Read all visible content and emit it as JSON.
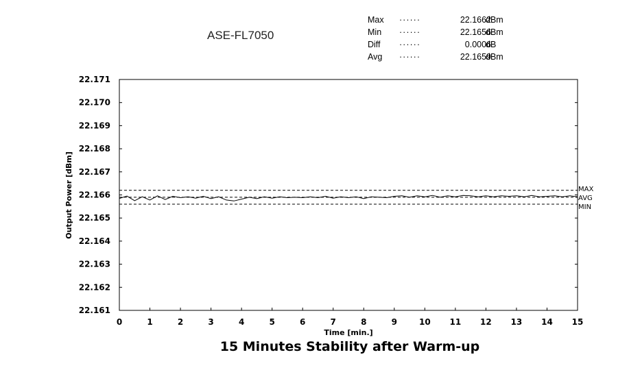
{
  "stats": [
    {
      "name": "Max",
      "dots": "······",
      "value": "22.1662",
      "unit": "dBm"
    },
    {
      "name": "Min",
      "dots": "······",
      "value": "22.1656",
      "unit": "dBm"
    },
    {
      "name": "Diff",
      "dots": "······",
      "value": "0.0006",
      "unit": "dB"
    },
    {
      "name": "Avg",
      "dots": "······",
      "value": "22.1659",
      "unit": "dBm"
    }
  ],
  "model": "ASE-FL7050",
  "caption": "15 Minutes Stability after Warm-up",
  "chart_data": {
    "type": "line",
    "title": "",
    "xlabel": "Time [min.]",
    "ylabel": "Output Power [dBm]",
    "xlim": [
      0,
      15
    ],
    "ylim": [
      22.161,
      22.171
    ],
    "x_ticks": [
      "0",
      "1",
      "2",
      "3",
      "4",
      "5",
      "6",
      "7",
      "8",
      "9",
      "10",
      "11",
      "12",
      "13",
      "14",
      "15"
    ],
    "y_ticks": [
      "22.171",
      "22.170",
      "22.169",
      "22.168",
      "22.167",
      "22.166",
      "22.165",
      "22.164",
      "22.163",
      "22.162",
      "22.161"
    ],
    "grid": false,
    "reference_lines": [
      {
        "label": "MAX",
        "y": 22.1662
      },
      {
        "label": "AVG",
        "y": 22.1659
      },
      {
        "label": "MIN",
        "y": 22.1656
      }
    ],
    "series": [
      {
        "x": [
          0,
          0.25,
          0.5,
          0.75,
          1,
          1.25,
          1.5,
          1.75,
          2,
          2.25,
          2.5,
          2.75,
          3,
          3.25,
          3.5,
          3.75,
          4,
          4.25,
          4.5,
          4.75,
          5,
          5.25,
          5.5,
          5.75,
          6,
          6.25,
          6.5,
          6.75,
          7,
          7.25,
          7.5,
          7.75,
          8,
          8.25,
          8.5,
          8.75,
          9,
          9.25,
          9.5,
          9.75,
          10,
          10.25,
          10.5,
          10.75,
          11,
          11.25,
          11.5,
          11.75,
          12,
          12.25,
          12.5,
          12.75,
          13,
          13.25,
          13.5,
          13.75,
          14,
          14.25,
          14.5,
          14.75,
          15
        ],
        "values": [
          22.16585,
          22.16595,
          22.16575,
          22.16592,
          22.16578,
          22.16596,
          22.1658,
          22.16594,
          22.16588,
          22.16592,
          22.16586,
          22.16594,
          22.16584,
          22.16592,
          22.16578,
          22.16574,
          22.16582,
          22.1659,
          22.16584,
          22.16592,
          22.16586,
          22.16592,
          22.16588,
          22.1659,
          22.16588,
          22.16592,
          22.16588,
          22.16594,
          22.16586,
          22.16592,
          22.16588,
          22.16592,
          22.16584,
          22.16592,
          22.1659,
          22.16588,
          22.16594,
          22.16596,
          22.1659,
          22.16596,
          22.16592,
          22.16598,
          22.1659,
          22.16596,
          22.16592,
          22.16598,
          22.16596,
          22.16592,
          22.16596,
          22.16592,
          22.16596,
          22.16594,
          22.16596,
          22.16592,
          22.16598,
          22.16592,
          22.16594,
          22.16596,
          22.16592,
          22.16596,
          22.16592
        ]
      }
    ]
  }
}
